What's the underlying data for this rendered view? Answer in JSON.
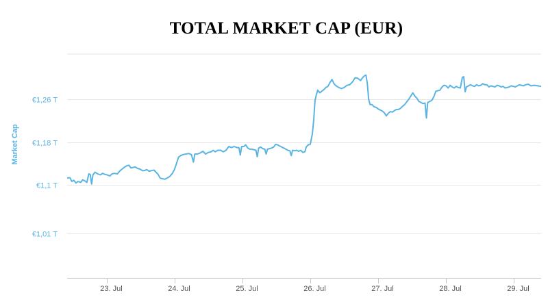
{
  "chart_data": {
    "type": "line",
    "title": "TOTAL MARKET CAP (EUR)",
    "ylabel": "Market Cap",
    "xlabel": "",
    "y_ticks": [
      {
        "value": 1.01,
        "label": "€1,01 T"
      },
      {
        "value": 1.1,
        "label": "€1,1 T"
      },
      {
        "value": 1.18,
        "label": "€1,18 T"
      },
      {
        "value": 1.26,
        "label": "€1,26 T"
      }
    ],
    "x_ticks": [
      {
        "value": 1.0,
        "label": "23. Jul"
      },
      {
        "value": 2.0,
        "label": "24. Jul"
      },
      {
        "value": 3.0,
        "label": "25. Jul"
      },
      {
        "value": 4.0,
        "label": "26. Jul"
      },
      {
        "value": 5.0,
        "label": "27. Jul"
      },
      {
        "value": 6.0,
        "label": "28. Jul"
      },
      {
        "value": 7.0,
        "label": "29. Jul"
      }
    ],
    "xlim": [
      0.42,
      7.4
    ],
    "ylim": [
      0.92,
      1.36
    ],
    "grid": true,
    "legend": "none",
    "colors": {
      "line": "#5ab4e3",
      "axis_text": "#5ab4e3",
      "grid": "#e6e6e6",
      "tick_text": "#555555"
    },
    "series": [
      {
        "values": [
          [
            0.42,
            1.113
          ],
          [
            0.46,
            1.114
          ],
          [
            0.49,
            1.107
          ],
          [
            0.52,
            1.109
          ],
          [
            0.55,
            1.104
          ],
          [
            0.58,
            1.107
          ],
          [
            0.62,
            1.105
          ],
          [
            0.65,
            1.11
          ],
          [
            0.68,
            1.108
          ],
          [
            0.71,
            1.105
          ],
          [
            0.74,
            1.121
          ],
          [
            0.76,
            1.12
          ],
          [
            0.78,
            1.102
          ],
          [
            0.8,
            1.119
          ],
          [
            0.83,
            1.124
          ],
          [
            0.87,
            1.121
          ],
          [
            0.91,
            1.119
          ],
          [
            0.94,
            1.122
          ],
          [
            0.98,
            1.12
          ],
          [
            1.01,
            1.119
          ],
          [
            1.05,
            1.117
          ],
          [
            1.08,
            1.121
          ],
          [
            1.12,
            1.122
          ],
          [
            1.16,
            1.121
          ],
          [
            1.2,
            1.127
          ],
          [
            1.24,
            1.131
          ],
          [
            1.27,
            1.134
          ],
          [
            1.3,
            1.136
          ],
          [
            1.33,
            1.137
          ],
          [
            1.36,
            1.132
          ],
          [
            1.39,
            1.133
          ],
          [
            1.42,
            1.134
          ],
          [
            1.46,
            1.131
          ],
          [
            1.49,
            1.13
          ],
          [
            1.53,
            1.127
          ],
          [
            1.56,
            1.127
          ],
          [
            1.59,
            1.129
          ],
          [
            1.63,
            1.126
          ],
          [
            1.66,
            1.127
          ],
          [
            1.7,
            1.128
          ],
          [
            1.73,
            1.124
          ],
          [
            1.76,
            1.12
          ],
          [
            1.79,
            1.113
          ],
          [
            1.82,
            1.112
          ],
          [
            1.86,
            1.111
          ],
          [
            1.89,
            1.113
          ],
          [
            1.93,
            1.116
          ],
          [
            1.97,
            1.122
          ],
          [
            2.0,
            1.129
          ],
          [
            2.03,
            1.14
          ],
          [
            2.06,
            1.152
          ],
          [
            2.09,
            1.155
          ],
          [
            2.13,
            1.157
          ],
          [
            2.17,
            1.158
          ],
          [
            2.21,
            1.159
          ],
          [
            2.25,
            1.157
          ],
          [
            2.28,
            1.143
          ],
          [
            2.3,
            1.158
          ],
          [
            2.34,
            1.158
          ],
          [
            2.38,
            1.16
          ],
          [
            2.42,
            1.163
          ],
          [
            2.46,
            1.158
          ],
          [
            2.5,
            1.161
          ],
          [
            2.54,
            1.162
          ],
          [
            2.57,
            1.165
          ],
          [
            2.6,
            1.162
          ],
          [
            2.64,
            1.165
          ],
          [
            2.68,
            1.165
          ],
          [
            2.72,
            1.162
          ],
          [
            2.76,
            1.165
          ],
          [
            2.8,
            1.172
          ],
          [
            2.84,
            1.17
          ],
          [
            2.88,
            1.172
          ],
          [
            2.92,
            1.17
          ],
          [
            2.95,
            1.17
          ],
          [
            2.97,
            1.156
          ],
          [
            2.99,
            1.172
          ],
          [
            3.02,
            1.172
          ],
          [
            3.05,
            1.175
          ],
          [
            3.08,
            1.169
          ],
          [
            3.11,
            1.167
          ],
          [
            3.14,
            1.167
          ],
          [
            3.17,
            1.166
          ],
          [
            3.2,
            1.165
          ],
          [
            3.22,
            1.153
          ],
          [
            3.24,
            1.169
          ],
          [
            3.27,
            1.171
          ],
          [
            3.3,
            1.168
          ],
          [
            3.33,
            1.167
          ],
          [
            3.35,
            1.158
          ],
          [
            3.37,
            1.167
          ],
          [
            3.4,
            1.168
          ],
          [
            3.43,
            1.169
          ],
          [
            3.46,
            1.171
          ],
          [
            3.49,
            1.176
          ],
          [
            3.52,
            1.175
          ],
          [
            3.55,
            1.173
          ],
          [
            3.58,
            1.171
          ],
          [
            3.61,
            1.169
          ],
          [
            3.64,
            1.167
          ],
          [
            3.67,
            1.165
          ],
          [
            3.7,
            1.164
          ],
          [
            3.72,
            1.155
          ],
          [
            3.74,
            1.165
          ],
          [
            3.77,
            1.164
          ],
          [
            3.8,
            1.165
          ],
          [
            3.83,
            1.163
          ],
          [
            3.86,
            1.165
          ],
          [
            3.89,
            1.161
          ],
          [
            3.92,
            1.162
          ],
          [
            3.94,
            1.171
          ],
          [
            3.97,
            1.175
          ],
          [
            4.0,
            1.176
          ],
          [
            4.03,
            1.195
          ],
          [
            4.05,
            1.22
          ],
          [
            4.07,
            1.258
          ],
          [
            4.09,
            1.268
          ],
          [
            4.11,
            1.277
          ],
          [
            4.14,
            1.272
          ],
          [
            4.17,
            1.275
          ],
          [
            4.2,
            1.278
          ],
          [
            4.23,
            1.282
          ],
          [
            4.26,
            1.284
          ],
          [
            4.29,
            1.291
          ],
          [
            4.32,
            1.297
          ],
          [
            4.35,
            1.289
          ],
          [
            4.38,
            1.285
          ],
          [
            4.42,
            1.282
          ],
          [
            4.46,
            1.28
          ],
          [
            4.5,
            1.282
          ],
          [
            4.54,
            1.286
          ],
          [
            4.58,
            1.287
          ],
          [
            4.62,
            1.292
          ],
          [
            4.66,
            1.3
          ],
          [
            4.7,
            1.299
          ],
          [
            4.74,
            1.295
          ],
          [
            4.77,
            1.3
          ],
          [
            4.8,
            1.304
          ],
          [
            4.82,
            1.305
          ],
          [
            4.84,
            1.29
          ],
          [
            4.86,
            1.26
          ],
          [
            4.88,
            1.25
          ],
          [
            4.91,
            1.25
          ],
          [
            4.94,
            1.246
          ],
          [
            4.97,
            1.245
          ],
          [
            5.0,
            1.242
          ],
          [
            5.03,
            1.24
          ],
          [
            5.06,
            1.238
          ],
          [
            5.09,
            1.235
          ],
          [
            5.12,
            1.229
          ],
          [
            5.15,
            1.234
          ],
          [
            5.18,
            1.237
          ],
          [
            5.21,
            1.236
          ],
          [
            5.24,
            1.239
          ],
          [
            5.27,
            1.241
          ],
          [
            5.3,
            1.241
          ],
          [
            5.33,
            1.243
          ],
          [
            5.36,
            1.247
          ],
          [
            5.39,
            1.25
          ],
          [
            5.42,
            1.255
          ],
          [
            5.45,
            1.26
          ],
          [
            5.48,
            1.266
          ],
          [
            5.51,
            1.272
          ],
          [
            5.54,
            1.266
          ],
          [
            5.57,
            1.262
          ],
          [
            5.6,
            1.256
          ],
          [
            5.63,
            1.254
          ],
          [
            5.66,
            1.252
          ],
          [
            5.69,
            1.253
          ],
          [
            5.71,
            1.225
          ],
          [
            5.73,
            1.254
          ],
          [
            5.76,
            1.256
          ],
          [
            5.79,
            1.258
          ],
          [
            5.82,
            1.265
          ],
          [
            5.85,
            1.275
          ],
          [
            5.88,
            1.276
          ],
          [
            5.91,
            1.277
          ],
          [
            5.94,
            1.283
          ],
          [
            5.97,
            1.286
          ],
          [
            6.0,
            1.285
          ],
          [
            6.03,
            1.281
          ],
          [
            6.06,
            1.286
          ],
          [
            6.09,
            1.283
          ],
          [
            6.12,
            1.281
          ],
          [
            6.15,
            1.284
          ],
          [
            6.18,
            1.282
          ],
          [
            6.21,
            1.281
          ],
          [
            6.24,
            1.301
          ],
          [
            6.26,
            1.302
          ],
          [
            6.28,
            1.274
          ],
          [
            6.3,
            1.283
          ],
          [
            6.33,
            1.285
          ],
          [
            6.36,
            1.287
          ],
          [
            6.39,
            1.285
          ],
          [
            6.42,
            1.284
          ],
          [
            6.45,
            1.287
          ],
          [
            6.48,
            1.285
          ],
          [
            6.51,
            1.286
          ],
          [
            6.54,
            1.289
          ],
          [
            6.57,
            1.287
          ],
          [
            6.6,
            1.287
          ],
          [
            6.63,
            1.283
          ],
          [
            6.66,
            1.285
          ],
          [
            6.69,
            1.284
          ],
          [
            6.72,
            1.283
          ],
          [
            6.75,
            1.286
          ],
          [
            6.78,
            1.285
          ],
          [
            6.81,
            1.283
          ],
          [
            6.84,
            1.284
          ],
          [
            6.87,
            1.281
          ],
          [
            6.9,
            1.282
          ],
          [
            6.93,
            1.283
          ],
          [
            6.96,
            1.285
          ],
          [
            6.99,
            1.284
          ],
          [
            7.02,
            1.283
          ],
          [
            7.05,
            1.285
          ],
          [
            7.08,
            1.287
          ],
          [
            7.11,
            1.286
          ],
          [
            7.14,
            1.285
          ],
          [
            7.17,
            1.287
          ],
          [
            7.21,
            1.288
          ],
          [
            7.25,
            1.285
          ],
          [
            7.3,
            1.286
          ],
          [
            7.35,
            1.285
          ],
          [
            7.4,
            1.284
          ]
        ]
      }
    ]
  }
}
